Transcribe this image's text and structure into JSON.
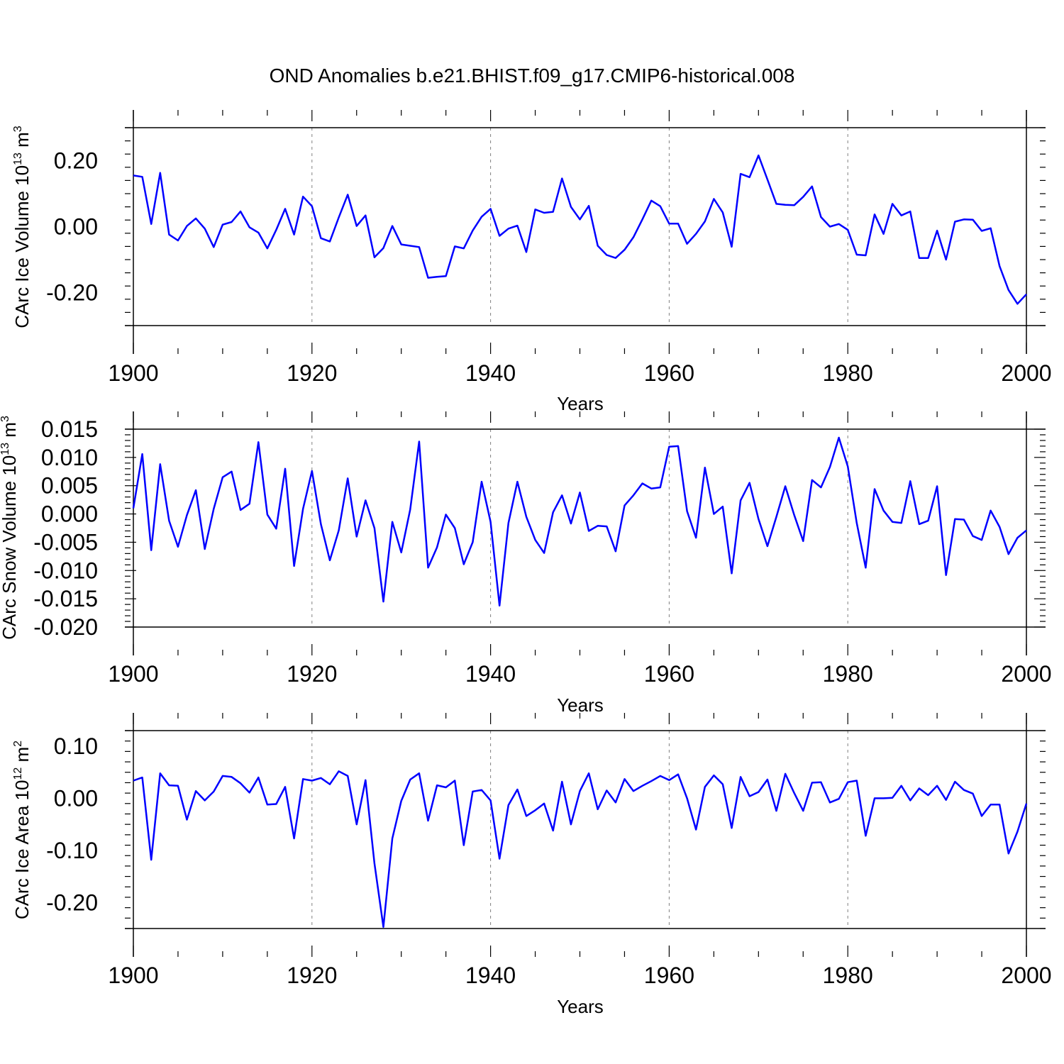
{
  "figure_title": "OND Anomalies b.e21.BHIST.f09_g17.CMIP6-historical.008",
  "colors": {
    "line": "#0000ff",
    "axis": "#000000",
    "grid": "#808080"
  },
  "chart_data": [
    {
      "type": "line",
      "name": "ice-volume",
      "ylabel_main": "CArc Ice Volume 10",
      "ylabel_exp": "13",
      "ylabel_unit": " m",
      "ylabel_unit_exp": "3",
      "xlabel": "Years",
      "xlim": [
        1900,
        2000
      ],
      "ylim": [
        -0.3,
        0.3
      ],
      "x_ticks": [
        1900,
        1920,
        1940,
        1960,
        1980,
        2000
      ],
      "y_ticks": [
        0.2,
        0.0,
        -0.2
      ],
      "y_tick_labels": [
        "0.20",
        "0.00",
        "-0.20"
      ],
      "grid_x": [
        1920,
        1940,
        1960,
        1980
      ],
      "x_start": 1900,
      "values": [
        0.155,
        0.151,
        0.008,
        0.163,
        -0.024,
        -0.042,
        0.002,
        0.025,
        -0.006,
        -0.062,
        0.006,
        0.014,
        0.046,
        -0.002,
        -0.018,
        -0.066,
        -0.01,
        0.054,
        -0.024,
        0.091,
        0.062,
        -0.035,
        -0.045,
        0.028,
        0.097,
        0.002,
        0.034,
        -0.093,
        -0.065,
        0.002,
        -0.054,
        -0.058,
        -0.062,
        -0.155,
        -0.152,
        -0.15,
        -0.06,
        -0.066,
        -0.012,
        0.03,
        0.054,
        -0.028,
        -0.006,
        0.003,
        -0.077,
        0.052,
        0.042,
        0.045,
        0.146,
        0.06,
        0.022,
        0.063,
        -0.058,
        -0.086,
        -0.095,
        -0.07,
        -0.032,
        0.022,
        0.079,
        0.062,
        0.009,
        0.009,
        -0.052,
        -0.022,
        0.016,
        0.084,
        0.043,
        -0.061,
        0.16,
        0.15,
        0.216,
        0.143,
        0.069,
        0.066,
        0.065,
        0.09,
        0.122,
        0.029,
        0.0,
        0.008,
        -0.01,
        -0.085,
        -0.087,
        0.037,
        -0.022,
        0.069,
        0.034,
        0.046,
        -0.095,
        -0.095,
        -0.012,
        -0.1,
        0.015,
        0.022,
        0.021,
        -0.013,
        -0.005,
        -0.12,
        -0.192,
        -0.234,
        -0.205
      ]
    },
    {
      "type": "line",
      "name": "snow-volume",
      "ylabel_main": "CArc Snow Volume 10",
      "ylabel_exp": "13",
      "ylabel_unit": " m",
      "ylabel_unit_exp": "3",
      "xlabel": "Years",
      "xlim": [
        1900,
        2000
      ],
      "ylim": [
        -0.02,
        0.015
      ],
      "x_ticks": [
        1900,
        1920,
        1940,
        1960,
        1980,
        2000
      ],
      "y_ticks": [
        0.015,
        0.01,
        0.005,
        0.0,
        -0.005,
        -0.01,
        -0.015,
        -0.02
      ],
      "y_tick_labels": [
        "0.015",
        "0.010",
        "0.005",
        "0.000",
        "-0.005",
        "-0.010",
        "-0.015",
        "-0.020"
      ],
      "grid_x": [
        1920,
        1940,
        1960,
        1980
      ],
      "x_start": 1900,
      "values": [
        0.001,
        0.0106,
        -0.0064,
        0.0088,
        -0.0012,
        -0.0058,
        -0.0002,
        0.0042,
        -0.0062,
        0.0009,
        0.0065,
        0.0075,
        0.0007,
        0.0018,
        0.0127,
        -0.0001,
        -0.0026,
        0.008,
        -0.0092,
        0.0009,
        0.0076,
        -0.0018,
        -0.0082,
        -0.0029,
        0.0063,
        -0.004,
        0.0024,
        -0.0025,
        -0.0155,
        -0.0014,
        -0.0068,
        0.0008,
        0.0128,
        -0.0095,
        -0.0059,
        -0.0001,
        -0.0025,
        -0.0089,
        -0.005,
        0.0057,
        -0.0014,
        -0.0162,
        -0.0016,
        0.0057,
        -0.0005,
        -0.0046,
        -0.0069,
        0.0003,
        0.0033,
        -0.0017,
        0.0038,
        -0.003,
        -0.0021,
        -0.0022,
        -0.0066,
        0.0015,
        0.0033,
        0.0054,
        0.0045,
        0.0047,
        0.0119,
        0.012,
        0.0005,
        -0.0042,
        0.0082,
        0.0,
        0.0013,
        -0.0105,
        0.0024,
        0.0055,
        -0.0009,
        -0.0057,
        -0.0005,
        0.0049,
        -0.0002,
        -0.0048,
        0.006,
        0.0047,
        0.0083,
        0.0135,
        0.0084,
        -0.0016,
        -0.0095,
        0.0044,
        0.0006,
        -0.0014,
        -0.0016,
        0.0058,
        -0.0018,
        -0.0012,
        0.0049,
        -0.0108,
        -0.0009,
        -0.001,
        -0.0039,
        -0.0046,
        0.0006,
        -0.0023,
        -0.0071,
        -0.0042,
        -0.0029
      ]
    },
    {
      "type": "line",
      "name": "ice-area",
      "ylabel_main": "CArc Ice Area 10",
      "ylabel_exp": "12",
      "ylabel_unit": " m",
      "ylabel_unit_exp": "2",
      "xlabel": "Years",
      "xlim": [
        1900,
        2000
      ],
      "ylim": [
        -0.25,
        0.13
      ],
      "x_ticks": [
        1900,
        1920,
        1940,
        1960,
        1980,
        2000
      ],
      "y_ticks": [
        0.1,
        0.0,
        -0.1,
        -0.2
      ],
      "y_tick_labels": [
        "0.10",
        "0.00",
        "-0.10",
        "-0.20"
      ],
      "grid_x": [
        1920,
        1940,
        1960,
        1980
      ],
      "x_start": 1900,
      "values": [
        0.034,
        0.04,
        -0.118,
        0.048,
        0.025,
        0.024,
        -0.041,
        0.014,
        -0.004,
        0.013,
        0.043,
        0.041,
        0.029,
        0.011,
        0.04,
        -0.012,
        -0.011,
        0.022,
        -0.077,
        0.037,
        0.034,
        0.039,
        0.027,
        0.052,
        0.043,
        -0.05,
        0.035,
        -0.125,
        -0.247,
        -0.077,
        -0.005,
        0.036,
        0.048,
        -0.043,
        0.025,
        0.021,
        0.034,
        -0.09,
        0.013,
        0.016,
        -0.004,
        -0.116,
        -0.013,
        0.017,
        -0.034,
        -0.023,
        -0.01,
        -0.062,
        0.032,
        -0.05,
        0.014,
        0.048,
        -0.021,
        0.015,
        -0.008,
        0.037,
        0.014,
        0.024,
        0.033,
        0.043,
        0.035,
        0.046,
        0.0,
        -0.06,
        0.022,
        0.044,
        0.027,
        -0.057,
        0.041,
        0.004,
        0.012,
        0.036,
        -0.024,
        0.047,
        0.01,
        -0.024,
        0.03,
        0.031,
        -0.008,
        -0.001,
        0.031,
        0.034,
        -0.072,
        0.0,
        0.0,
        0.001,
        0.024,
        -0.004,
        0.019,
        0.006,
        0.024,
        -0.003,
        0.032,
        0.016,
        0.009,
        -0.034,
        -0.012,
        -0.012,
        -0.106,
        -0.064,
        -0.01
      ]
    }
  ]
}
